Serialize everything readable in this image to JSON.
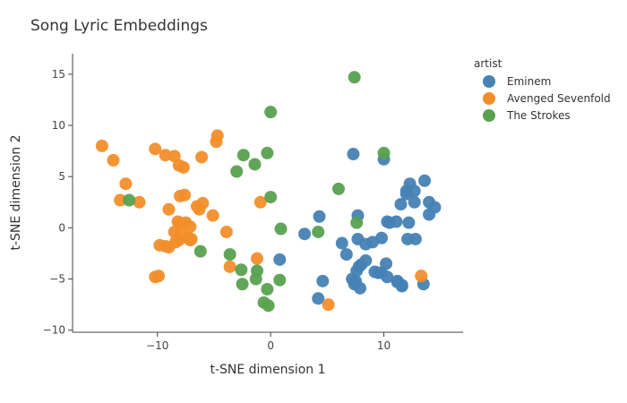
{
  "chart_data": {
    "type": "scatter",
    "title": "Song Lyric Embeddings",
    "xlabel": "t-SNE dimension 1",
    "ylabel": "t-SNE dimension 2",
    "xlim": [
      -17.5,
      17
    ],
    "ylim": [
      -10.2,
      17
    ],
    "xticks": [
      -10,
      0,
      10
    ],
    "xtick_labels": [
      "−10",
      "0",
      "10"
    ],
    "yticks": [
      -10,
      -5,
      0,
      5,
      10,
      15
    ],
    "ytick_labels": [
      "−10",
      "−5",
      "0",
      "5",
      "10",
      "15"
    ],
    "grid": false,
    "legend_title": "artist",
    "legend_position": "top-right",
    "series": [
      {
        "name": "Eminem",
        "color": "#4682b4",
        "x": [
          4.3,
          7.3,
          10.0,
          12.3,
          13.6,
          12.0,
          12.7,
          12.0,
          12.7,
          14.0,
          14.5,
          14.0,
          11.5,
          12.2,
          11.1,
          10.3,
          10.5,
          9.8,
          7.7,
          6.3,
          6.7,
          8.4,
          9.0,
          7.8,
          8.0,
          7.5,
          7.4,
          7.2,
          7.6,
          10.2,
          9.8,
          10.3,
          9.2,
          11.2,
          11.6,
          12.1,
          12.8,
          3.0,
          4.6,
          4.2,
          0.8,
          11.2,
          11.6,
          13.5,
          7.7,
          8.4,
          9.5,
          7.9
        ],
        "y": [
          1.1,
          7.2,
          6.7,
          4.3,
          4.6,
          3.6,
          3.6,
          3.3,
          2.5,
          2.5,
          2.0,
          1.3,
          2.3,
          0.5,
          0.6,
          0.6,
          0.5,
          -1.0,
          -1.1,
          -1.5,
          -2.6,
          -1.6,
          -1.4,
          -3.8,
          -3.6,
          -5.2,
          -5.5,
          -5.0,
          -4.2,
          -3.5,
          -4.4,
          -4.8,
          -4.3,
          -5.2,
          -5.7,
          -1.1,
          -1.1,
          -0.6,
          -5.2,
          -6.9,
          -3.1,
          -5.3,
          -5.6,
          -5.5,
          1.2,
          -3.2,
          -4.4,
          -5.9
        ]
      },
      {
        "name": "Avenged Sevenfold",
        "color": "#f28e2b",
        "x": [
          -14.9,
          -13.9,
          -12.8,
          -13.3,
          -11.6,
          -10.2,
          -9.3,
          -8.5,
          -8.1,
          -7.7,
          -6.1,
          -6.5,
          -6.0,
          -5.1,
          -9.0,
          -8.0,
          -7.6,
          -6.3,
          -8.2,
          -8.0,
          -7.5,
          -7.1,
          -8.5,
          -7.9,
          -7.3,
          -7.0,
          -8.1,
          -9.8,
          -9.3,
          -9.0,
          -8.4,
          -7.1,
          -10.2,
          -9.9,
          -4.8,
          -4.7,
          -3.9,
          -3.6,
          -0.9,
          -1.2,
          5.1,
          13.3
        ],
        "y": [
          8.0,
          6.6,
          4.3,
          2.7,
          2.5,
          7.7,
          7.1,
          7.0,
          6.1,
          5.9,
          6.9,
          2.1,
          2.4,
          1.2,
          1.8,
          3.1,
          3.2,
          1.8,
          0.6,
          0.4,
          0.5,
          0.1,
          -0.4,
          -0.6,
          -1.0,
          -1.1,
          -1.2,
          -1.7,
          -1.8,
          -1.9,
          -1.4,
          -1.2,
          -4.8,
          -4.7,
          8.4,
          9.0,
          -0.4,
          -3.8,
          2.5,
          -3.0,
          -7.5,
          -4.7
        ]
      },
      {
        "name": "The Strokes",
        "color": "#59a14f",
        "x": [
          7.4,
          0.0,
          10.0,
          6.0,
          -0.3,
          -2.4,
          -1.4,
          -3.0,
          0.0,
          0.9,
          -6.2,
          -3.6,
          -2.6,
          -1.2,
          -1.3,
          -2.5,
          0.8,
          -0.3,
          -0.6,
          -0.2,
          4.2,
          7.6,
          -12.5
        ],
        "y": [
          14.7,
          11.3,
          7.3,
          3.8,
          7.3,
          7.1,
          6.2,
          5.5,
          3.0,
          -0.1,
          -2.3,
          -2.6,
          -4.1,
          -4.2,
          -5.0,
          -5.5,
          -5.1,
          -6.0,
          -7.3,
          -7.6,
          -0.4,
          0.5,
          2.7
        ]
      }
    ]
  }
}
